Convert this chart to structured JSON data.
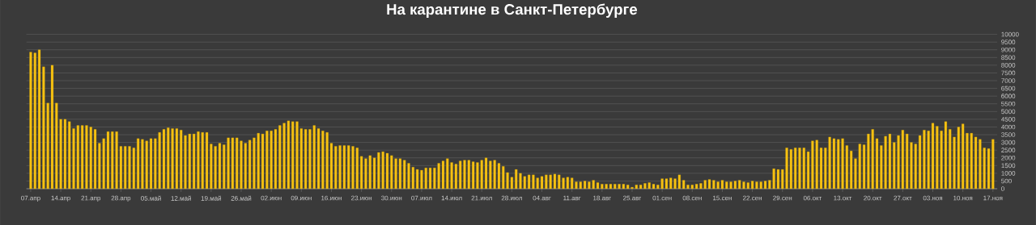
{
  "chart_data": {
    "type": "bar",
    "title": "На карантине в Санкт-Петербурге",
    "categories": [
      "07.апр",
      null,
      null,
      null,
      null,
      null,
      null,
      "14.апр",
      null,
      null,
      null,
      null,
      null,
      null,
      "21.апр",
      null,
      null,
      null,
      null,
      null,
      null,
      "28.апр",
      null,
      null,
      null,
      null,
      null,
      null,
      "05.май",
      null,
      null,
      null,
      null,
      null,
      null,
      "12.май",
      null,
      null,
      null,
      null,
      null,
      null,
      "19.май",
      null,
      null,
      null,
      null,
      null,
      null,
      "26.май",
      null,
      null,
      null,
      null,
      null,
      null,
      "02.июн",
      null,
      null,
      null,
      null,
      null,
      null,
      "09.июн",
      null,
      null,
      null,
      null,
      null,
      null,
      "16.июн",
      null,
      null,
      null,
      null,
      null,
      null,
      "23.июн",
      null,
      null,
      null,
      null,
      null,
      null,
      "30.июн",
      null,
      null,
      null,
      null,
      null,
      null,
      "07.июл",
      null,
      null,
      null,
      null,
      null,
      null,
      "14.июл",
      null,
      null,
      null,
      null,
      null,
      null,
      "21.июл",
      null,
      null,
      null,
      null,
      null,
      null,
      "28.июл",
      null,
      null,
      null,
      null,
      null,
      null,
      "04.авг",
      null,
      null,
      null,
      null,
      null,
      null,
      "11.авг",
      null,
      null,
      null,
      null,
      null,
      null,
      "18.авг",
      null,
      null,
      null,
      null,
      null,
      null,
      "25.авг",
      null,
      null,
      null,
      null,
      null,
      null,
      "01.сен",
      null,
      null,
      null,
      null,
      null,
      null,
      "08.сен",
      null,
      null,
      null,
      null,
      null,
      null,
      "15.сен",
      null,
      null,
      null,
      null,
      null,
      null,
      "22.сен",
      null,
      null,
      null,
      null,
      null,
      null,
      "29.сен",
      null,
      null,
      null,
      null,
      null,
      null,
      "06.окт",
      null,
      null,
      null,
      null,
      null,
      null,
      "13.окт",
      null,
      null,
      null,
      null,
      null,
      null,
      "20.окт",
      null,
      null,
      null,
      null,
      null,
      null,
      "27.окт",
      null,
      null,
      null,
      null,
      null,
      null,
      "03.ноя",
      null,
      null,
      null,
      null,
      null,
      null,
      "10.ноя",
      null,
      null,
      null,
      null,
      null,
      null,
      "17.ноя"
    ],
    "values": [
      8850,
      8800,
      9000,
      7900,
      5550,
      8000,
      5550,
      4500,
      4500,
      4350,
      3900,
      4100,
      4100,
      4100,
      4000,
      3850,
      2950,
      3250,
      3700,
      3700,
      3700,
      2750,
      2750,
      2750,
      2650,
      3250,
      3200,
      3100,
      3250,
      3250,
      3650,
      3850,
      3950,
      3900,
      3900,
      3800,
      3450,
      3550,
      3550,
      3700,
      3650,
      3650,
      2900,
      2750,
      2950,
      2850,
      3300,
      3300,
      3300,
      3100,
      2950,
      3150,
      3300,
      3600,
      3550,
      3750,
      3750,
      3850,
      4100,
      4250,
      4400,
      4350,
      4350,
      3900,
      3850,
      3850,
      4100,
      3900,
      3750,
      3650,
      2950,
      2750,
      2800,
      2800,
      2800,
      2750,
      2650,
      2100,
      1950,
      2150,
      2000,
      2350,
      2400,
      2300,
      2150,
      1950,
      1950,
      1850,
      1650,
      1400,
      1250,
      1200,
      1350,
      1350,
      1350,
      1650,
      1800,
      1950,
      1700,
      1600,
      1800,
      1850,
      1850,
      1750,
      1700,
      1850,
      2000,
      1800,
      1850,
      1650,
      1450,
      1050,
      750,
      1250,
      1000,
      800,
      900,
      900,
      700,
      800,
      900,
      900,
      950,
      900,
      700,
      750,
      700,
      450,
      450,
      500,
      450,
      550,
      400,
      300,
      300,
      300,
      300,
      300,
      300,
      250,
      100,
      250,
      250,
      350,
      400,
      300,
      250,
      650,
      650,
      700,
      650,
      900,
      550,
      250,
      250,
      300,
      350,
      550,
      600,
      550,
      450,
      550,
      450,
      450,
      500,
      550,
      450,
      400,
      500,
      450,
      450,
      500,
      550,
      1300,
      1250,
      1250,
      2650,
      2550,
      2650,
      2650,
      2650,
      2400,
      3100,
      3150,
      2650,
      2650,
      3350,
      3250,
      3200,
      3250,
      2800,
      2450,
      1950,
      2900,
      2850,
      3550,
      3850,
      3250,
      2800,
      3400,
      3550,
      3000,
      3450,
      3800,
      3550,
      3000,
      2900,
      3450,
      3800,
      3750,
      4250,
      4050,
      3750,
      4350,
      3850,
      3350,
      4000,
      4200,
      3600,
      3600,
      3350,
      3200,
      2650,
      2600,
      3200
    ],
    "color": "#f7c211",
    "ylim": [
      0,
      10000
    ],
    "yticks": [
      0,
      500,
      1000,
      1500,
      2000,
      2500,
      3000,
      3500,
      4000,
      4500,
      5000,
      5500,
      6000,
      6500,
      7000,
      7500,
      8000,
      8500,
      9000,
      9500,
      10000
    ],
    "grid": "y"
  }
}
